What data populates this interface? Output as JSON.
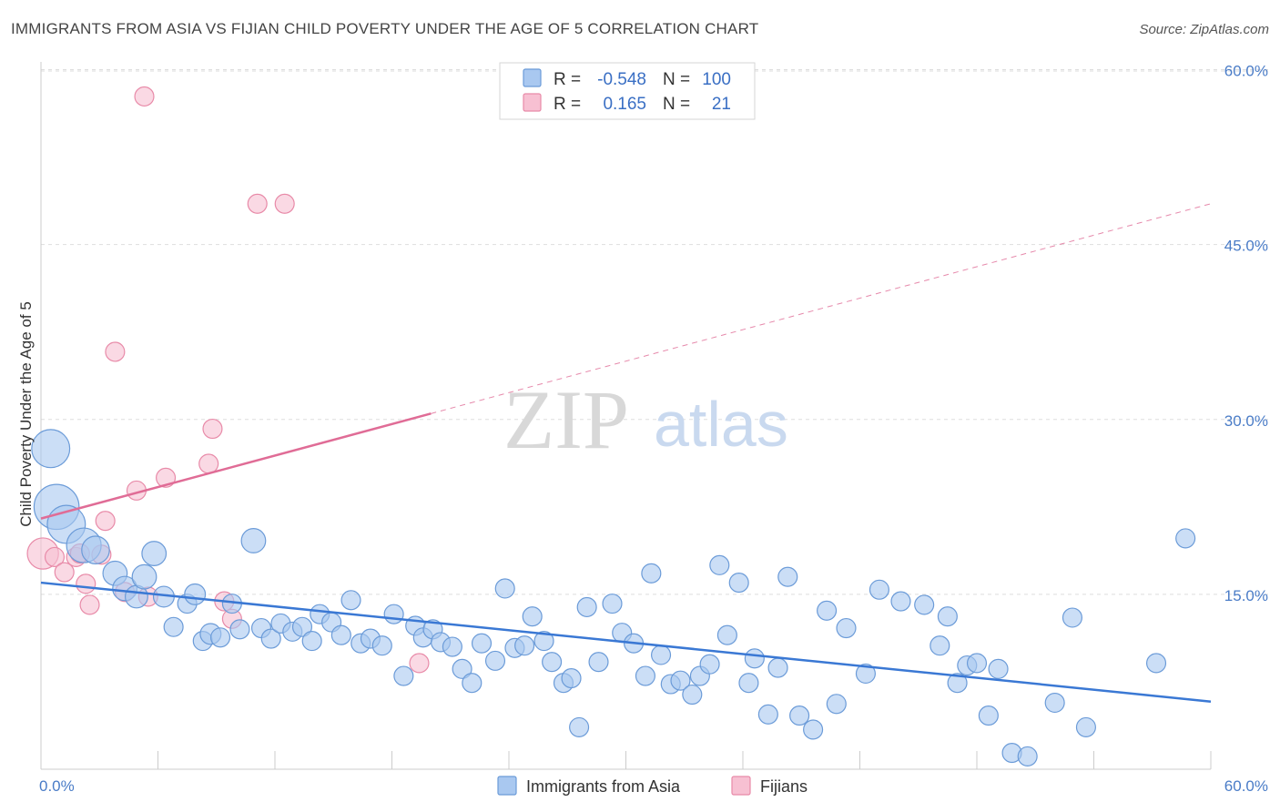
{
  "title": "IMMIGRANTS FROM ASIA VS FIJIAN CHILD POVERTY UNDER THE AGE OF 5 CORRELATION CHART",
  "source": "Source: ZipAtlas.com",
  "watermark": {
    "zip": "ZIP",
    "atlas": "atlas"
  },
  "colors": {
    "blue_fill": "#a9c8f0",
    "blue_stroke": "#6b9bd8",
    "blue_line": "#3a78d4",
    "pink_fill": "#f7c0d2",
    "pink_stroke": "#e88aa8",
    "pink_line": "#e06c96",
    "grid": "#dddddd",
    "tick_text": "#4a7cc7"
  },
  "legend": {
    "rows": [
      {
        "r_label": "R =",
        "r_value": "-0.548",
        "n_label": "N =",
        "n_value": "100"
      },
      {
        "r_label": "R =",
        "r_value": "0.165",
        "n_label": "N =",
        "n_value": "21"
      }
    ]
  },
  "chart_data": {
    "type": "scatter",
    "ylabel": "Child Poverty Under the Age of 5",
    "xlim": [
      0,
      60
    ],
    "ylim": [
      0,
      60
    ],
    "x_tick_labels": {
      "min": "0.0%",
      "max": "60.0%"
    },
    "y_ticks": [
      15,
      30,
      45,
      60
    ],
    "y_tick_labels": [
      "15.0%",
      "30.0%",
      "45.0%",
      "60.0%"
    ],
    "grid": true,
    "legend_position": "top-center",
    "series": [
      {
        "name": "Immigrants from Asia",
        "color": "#a9c8f0",
        "trend": {
          "x0": 0,
          "y0": 16.0,
          "x1": 60,
          "y1": 5.8,
          "dashed_from": null
        },
        "points": [
          [
            0.5,
            27.5,
            22
          ],
          [
            0.8,
            22.5,
            26
          ],
          [
            1.3,
            21.0,
            22
          ],
          [
            2.2,
            19.2,
            20
          ],
          [
            2.8,
            18.8,
            16
          ],
          [
            3.8,
            16.8,
            14
          ],
          [
            4.3,
            15.5,
            14
          ],
          [
            4.9,
            14.8,
            13
          ],
          [
            5.3,
            16.5,
            14
          ],
          [
            5.8,
            18.5,
            14
          ],
          [
            6.3,
            14.8,
            12
          ],
          [
            6.8,
            12.2,
            11
          ],
          [
            7.5,
            14.2,
            11
          ],
          [
            7.9,
            15.0,
            12
          ],
          [
            8.3,
            11.0,
            11
          ],
          [
            8.7,
            11.6,
            12
          ],
          [
            9.2,
            11.3,
            11
          ],
          [
            9.8,
            14.2,
            11
          ],
          [
            10.2,
            12.0,
            11
          ],
          [
            10.9,
            19.6,
            14
          ],
          [
            11.3,
            12.1,
            11
          ],
          [
            11.8,
            11.2,
            11
          ],
          [
            12.3,
            12.5,
            11
          ],
          [
            12.9,
            11.8,
            11
          ],
          [
            13.4,
            12.2,
            11
          ],
          [
            13.9,
            11.0,
            11
          ],
          [
            14.3,
            13.3,
            11
          ],
          [
            14.9,
            12.6,
            11
          ],
          [
            15.4,
            11.5,
            11
          ],
          [
            15.9,
            14.5,
            11
          ],
          [
            16.4,
            10.8,
            11
          ],
          [
            16.9,
            11.2,
            11
          ],
          [
            17.5,
            10.6,
            11
          ],
          [
            18.1,
            13.3,
            11
          ],
          [
            18.6,
            8.0,
            11
          ],
          [
            19.2,
            12.3,
            11
          ],
          [
            19.6,
            11.3,
            11
          ],
          [
            20.1,
            12.0,
            11
          ],
          [
            20.5,
            10.9,
            11
          ],
          [
            21.1,
            10.5,
            11
          ],
          [
            21.6,
            8.6,
            11
          ],
          [
            22.1,
            7.4,
            11
          ],
          [
            22.6,
            10.8,
            11
          ],
          [
            23.3,
            9.3,
            11
          ],
          [
            23.8,
            15.5,
            11
          ],
          [
            24.3,
            10.4,
            11
          ],
          [
            24.8,
            10.6,
            11
          ],
          [
            25.2,
            13.1,
            11
          ],
          [
            25.8,
            11.0,
            11
          ],
          [
            26.2,
            9.2,
            11
          ],
          [
            26.8,
            7.4,
            11
          ],
          [
            27.2,
            7.8,
            11
          ],
          [
            27.6,
            3.6,
            11
          ],
          [
            28.0,
            13.9,
            11
          ],
          [
            28.6,
            9.2,
            11
          ],
          [
            29.3,
            14.2,
            11
          ],
          [
            29.8,
            11.7,
            11
          ],
          [
            30.4,
            10.8,
            11
          ],
          [
            31.0,
            8.0,
            11
          ],
          [
            31.3,
            16.8,
            11
          ],
          [
            31.8,
            9.8,
            11
          ],
          [
            32.3,
            7.3,
            11
          ],
          [
            32.8,
            7.6,
            11
          ],
          [
            33.4,
            6.4,
            11
          ],
          [
            33.8,
            8.0,
            11
          ],
          [
            34.3,
            9.0,
            11
          ],
          [
            34.8,
            17.5,
            11
          ],
          [
            35.2,
            11.5,
            11
          ],
          [
            35.8,
            16.0,
            11
          ],
          [
            36.3,
            7.4,
            11
          ],
          [
            36.6,
            9.5,
            11
          ],
          [
            37.3,
            4.7,
            11
          ],
          [
            37.8,
            8.7,
            11
          ],
          [
            38.3,
            16.5,
            11
          ],
          [
            38.9,
            4.6,
            11
          ],
          [
            39.6,
            3.4,
            11
          ],
          [
            40.3,
            13.6,
            11
          ],
          [
            40.8,
            5.6,
            11
          ],
          [
            41.3,
            12.1,
            11
          ],
          [
            42.3,
            8.2,
            11
          ],
          [
            43.0,
            15.4,
            11
          ],
          [
            44.1,
            14.4,
            11
          ],
          [
            45.3,
            14.1,
            11
          ],
          [
            46.1,
            10.6,
            11
          ],
          [
            46.5,
            13.1,
            11
          ],
          [
            47.0,
            7.4,
            11
          ],
          [
            47.5,
            8.9,
            11
          ],
          [
            48.0,
            9.1,
            11
          ],
          [
            48.6,
            4.6,
            11
          ],
          [
            49.1,
            8.6,
            11
          ],
          [
            49.8,
            1.4,
            11
          ],
          [
            50.6,
            1.1,
            11
          ],
          [
            52.0,
            5.7,
            11
          ],
          [
            52.9,
            13.0,
            11
          ],
          [
            53.6,
            3.6,
            11
          ],
          [
            57.2,
            9.1,
            11
          ],
          [
            58.7,
            19.8,
            11
          ]
        ]
      },
      {
        "name": "Fijians",
        "color": "#f7c0d2",
        "trend": {
          "x0": 0,
          "y0": 21.5,
          "x1": 60,
          "y1": 48.5,
          "dashed_from": 20
        },
        "points": [
          [
            0.1,
            18.5,
            18
          ],
          [
            0.7,
            18.2,
            11
          ],
          [
            1.2,
            16.9,
            11
          ],
          [
            1.8,
            18.2,
            11
          ],
          [
            2.0,
            18.5,
            11
          ],
          [
            2.3,
            15.9,
            11
          ],
          [
            2.5,
            14.1,
            11
          ],
          [
            3.1,
            18.4,
            11
          ],
          [
            3.3,
            21.3,
            11
          ],
          [
            3.8,
            35.8,
            11
          ],
          [
            4.3,
            15.2,
            11
          ],
          [
            4.9,
            23.9,
            11
          ],
          [
            5.3,
            57.7,
            11
          ],
          [
            5.5,
            14.8,
            11
          ],
          [
            6.4,
            25.0,
            11
          ],
          [
            8.6,
            26.2,
            11
          ],
          [
            8.8,
            29.2,
            11
          ],
          [
            9.4,
            14.4,
            11
          ],
          [
            9.8,
            12.9,
            11
          ],
          [
            11.1,
            48.5,
            11
          ],
          [
            12.5,
            48.5,
            11
          ],
          [
            19.4,
            9.1,
            11
          ]
        ]
      }
    ]
  },
  "bottom_legend": [
    {
      "label": "Immigrants from Asia"
    },
    {
      "label": "Fijians"
    }
  ]
}
